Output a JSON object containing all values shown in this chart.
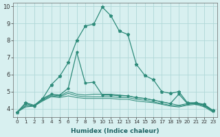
{
  "x": [
    0,
    1,
    2,
    3,
    4,
    5,
    6,
    7,
    8,
    9,
    10,
    11,
    12,
    13,
    14,
    15,
    16,
    17,
    18,
    19,
    20,
    21,
    22,
    23
  ],
  "line_main": [
    3.8,
    4.35,
    4.2,
    4.6,
    5.4,
    5.9,
    6.7,
    8.0,
    8.85,
    8.95,
    9.95,
    9.45,
    8.55,
    8.35,
    6.6,
    5.95,
    5.7,
    5.0,
    4.9,
    5.0,
    4.35,
    4.35,
    4.25,
    3.9
  ],
  "line_second": [
    3.8,
    4.3,
    4.15,
    4.6,
    4.85,
    4.8,
    5.2,
    7.3,
    5.5,
    5.55,
    4.8,
    4.8,
    4.75,
    4.75,
    4.65,
    4.6,
    4.5,
    4.4,
    4.3,
    4.85,
    4.3,
    4.3,
    4.2,
    3.85
  ],
  "line3": [
    3.8,
    4.2,
    4.15,
    4.55,
    4.8,
    4.75,
    5.0,
    4.85,
    4.8,
    4.85,
    4.85,
    4.85,
    4.8,
    4.75,
    4.65,
    4.6,
    4.5,
    4.4,
    4.3,
    4.2,
    4.3,
    4.35,
    4.2,
    3.9
  ],
  "line4": [
    3.8,
    4.15,
    4.15,
    4.5,
    4.75,
    4.7,
    4.9,
    4.75,
    4.7,
    4.7,
    4.7,
    4.7,
    4.65,
    4.65,
    4.55,
    4.5,
    4.4,
    4.3,
    4.2,
    4.15,
    4.25,
    4.3,
    4.15,
    3.85
  ],
  "line5": [
    3.8,
    4.1,
    4.15,
    4.45,
    4.7,
    4.65,
    4.75,
    4.65,
    4.6,
    4.6,
    4.6,
    4.6,
    4.55,
    4.55,
    4.45,
    4.4,
    4.35,
    4.25,
    4.15,
    4.1,
    4.2,
    4.25,
    4.1,
    3.8
  ],
  "color": "#2e8b7a",
  "bg_color": "#d8f0f0",
  "grid_color": "#b0d8d8",
  "xlabel": "Humidex (Indice chaleur)",
  "ylim": [
    3.5,
    10.2
  ],
  "xlim": [
    -0.5,
    23.5
  ],
  "yticks": [
    4,
    5,
    6,
    7,
    8,
    9,
    10
  ],
  "xticks": [
    0,
    1,
    2,
    3,
    4,
    5,
    6,
    7,
    8,
    9,
    10,
    11,
    12,
    13,
    14,
    15,
    16,
    17,
    18,
    19,
    20,
    21,
    22,
    23
  ],
  "markersize": 3.5,
  "linewidth": 0.9
}
